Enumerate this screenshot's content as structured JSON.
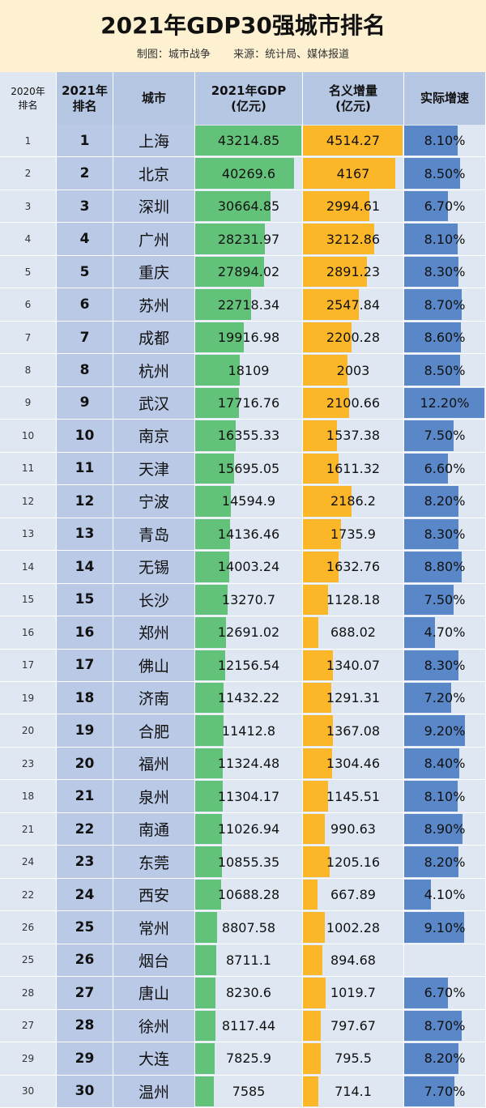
{
  "title": "2021年GDP30强城市排名",
  "subtitle": {
    "maker": "制图：城市战争",
    "source": "来源：统计局、媒体报道"
  },
  "headers": {
    "rank2020_line1": "2020年",
    "rank2020_line2": "排名",
    "rank2021_line1": "2021年",
    "rank2021_line2": "排名",
    "city": "城市",
    "gdp_line1": "2021年GDP",
    "gdp_line2": "(亿元)",
    "increase_line1": "名义增量",
    "increase_line2": "(亿元)",
    "rate": "实际增速"
  },
  "colors": {
    "title_bg": "#fdf1d2",
    "header_bg": "#b6c7e4",
    "row_blue": "#b9c9e6",
    "row_light": "#dfe7f3",
    "gdp_bar": "#63c27a",
    "increase_bar": "#fcb728",
    "rate_bar": "#5a87c8"
  },
  "chart_data": {
    "type": "table",
    "gdp_max": 43214.85,
    "increase_max": 4514.27,
    "rate_max": 12.2,
    "rows": [
      {
        "rank2020": "1",
        "rank2021": "1",
        "city": "上海",
        "gdp": "43214.85",
        "increase": "4514.27",
        "rate": "8.10%"
      },
      {
        "rank2020": "2",
        "rank2021": "2",
        "city": "北京",
        "gdp": "40269.6",
        "increase": "4167",
        "rate": "8.50%"
      },
      {
        "rank2020": "3",
        "rank2021": "3",
        "city": "深圳",
        "gdp": "30664.85",
        "increase": "2994.61",
        "rate": "6.70%"
      },
      {
        "rank2020": "4",
        "rank2021": "4",
        "city": "广州",
        "gdp": "28231.97",
        "increase": "3212.86",
        "rate": "8.10%"
      },
      {
        "rank2020": "5",
        "rank2021": "5",
        "city": "重庆",
        "gdp": "27894.02",
        "increase": "2891.23",
        "rate": "8.30%"
      },
      {
        "rank2020": "6",
        "rank2021": "6",
        "city": "苏州",
        "gdp": "22718.34",
        "increase": "2547.84",
        "rate": "8.70%"
      },
      {
        "rank2020": "7",
        "rank2021": "7",
        "city": "成都",
        "gdp": "19916.98",
        "increase": "2200.28",
        "rate": "8.60%"
      },
      {
        "rank2020": "8",
        "rank2021": "8",
        "city": "杭州",
        "gdp": "18109",
        "increase": "2003",
        "rate": "8.50%"
      },
      {
        "rank2020": "9",
        "rank2021": "9",
        "city": "武汉",
        "gdp": "17716.76",
        "increase": "2100.66",
        "rate": "12.20%"
      },
      {
        "rank2020": "10",
        "rank2021": "10",
        "city": "南京",
        "gdp": "16355.33",
        "increase": "1537.38",
        "rate": "7.50%"
      },
      {
        "rank2020": "11",
        "rank2021": "11",
        "city": "天津",
        "gdp": "15695.05",
        "increase": "1611.32",
        "rate": "6.60%"
      },
      {
        "rank2020": "12",
        "rank2021": "12",
        "city": "宁波",
        "gdp": "14594.9",
        "increase": "2186.2",
        "rate": "8.20%"
      },
      {
        "rank2020": "13",
        "rank2021": "13",
        "city": "青岛",
        "gdp": "14136.46",
        "increase": "1735.9",
        "rate": "8.30%"
      },
      {
        "rank2020": "14",
        "rank2021": "14",
        "city": "无锡",
        "gdp": "14003.24",
        "increase": "1632.76",
        "rate": "8.80%"
      },
      {
        "rank2020": "15",
        "rank2021": "15",
        "city": "长沙",
        "gdp": "13270.7",
        "increase": "1128.18",
        "rate": "7.50%"
      },
      {
        "rank2020": "16",
        "rank2021": "16",
        "city": "郑州",
        "gdp": "12691.02",
        "increase": "688.02",
        "rate": "4.70%"
      },
      {
        "rank2020": "17",
        "rank2021": "17",
        "city": "佛山",
        "gdp": "12156.54",
        "increase": "1340.07",
        "rate": "8.30%"
      },
      {
        "rank2020": "19",
        "rank2021": "18",
        "city": "济南",
        "gdp": "11432.22",
        "increase": "1291.31",
        "rate": "7.20%"
      },
      {
        "rank2020": "20",
        "rank2021": "19",
        "city": "合肥",
        "gdp": "11412.8",
        "increase": "1367.08",
        "rate": "9.20%"
      },
      {
        "rank2020": "23",
        "rank2021": "20",
        "city": "福州",
        "gdp": "11324.48",
        "increase": "1304.46",
        "rate": "8.40%"
      },
      {
        "rank2020": "18",
        "rank2021": "21",
        "city": "泉州",
        "gdp": "11304.17",
        "increase": "1145.51",
        "rate": "8.10%"
      },
      {
        "rank2020": "21",
        "rank2021": "22",
        "city": "南通",
        "gdp": "11026.94",
        "increase": "990.63",
        "rate": "8.90%"
      },
      {
        "rank2020": "24",
        "rank2021": "23",
        "city": "东莞",
        "gdp": "10855.35",
        "increase": "1205.16",
        "rate": "8.20%"
      },
      {
        "rank2020": "22",
        "rank2021": "24",
        "city": "西安",
        "gdp": "10688.28",
        "increase": "667.89",
        "rate": "4.10%"
      },
      {
        "rank2020": "26",
        "rank2021": "25",
        "city": "常州",
        "gdp": "8807.58",
        "increase": "1002.28",
        "rate": "9.10%"
      },
      {
        "rank2020": "25",
        "rank2021": "26",
        "city": "烟台",
        "gdp": "8711.1",
        "increase": "894.68",
        "rate": ""
      },
      {
        "rank2020": "28",
        "rank2021": "27",
        "city": "唐山",
        "gdp": "8230.6",
        "increase": "1019.7",
        "rate": "6.70%"
      },
      {
        "rank2020": "27",
        "rank2021": "28",
        "city": "徐州",
        "gdp": "8117.44",
        "increase": "797.67",
        "rate": "8.70%"
      },
      {
        "rank2020": "29",
        "rank2021": "29",
        "city": "大连",
        "gdp": "7825.9",
        "increase": "795.5",
        "rate": "8.20%"
      },
      {
        "rank2020": "30",
        "rank2021": "30",
        "city": "温州",
        "gdp": "7585",
        "increase": "714.1",
        "rate": "7.70%"
      }
    ]
  }
}
